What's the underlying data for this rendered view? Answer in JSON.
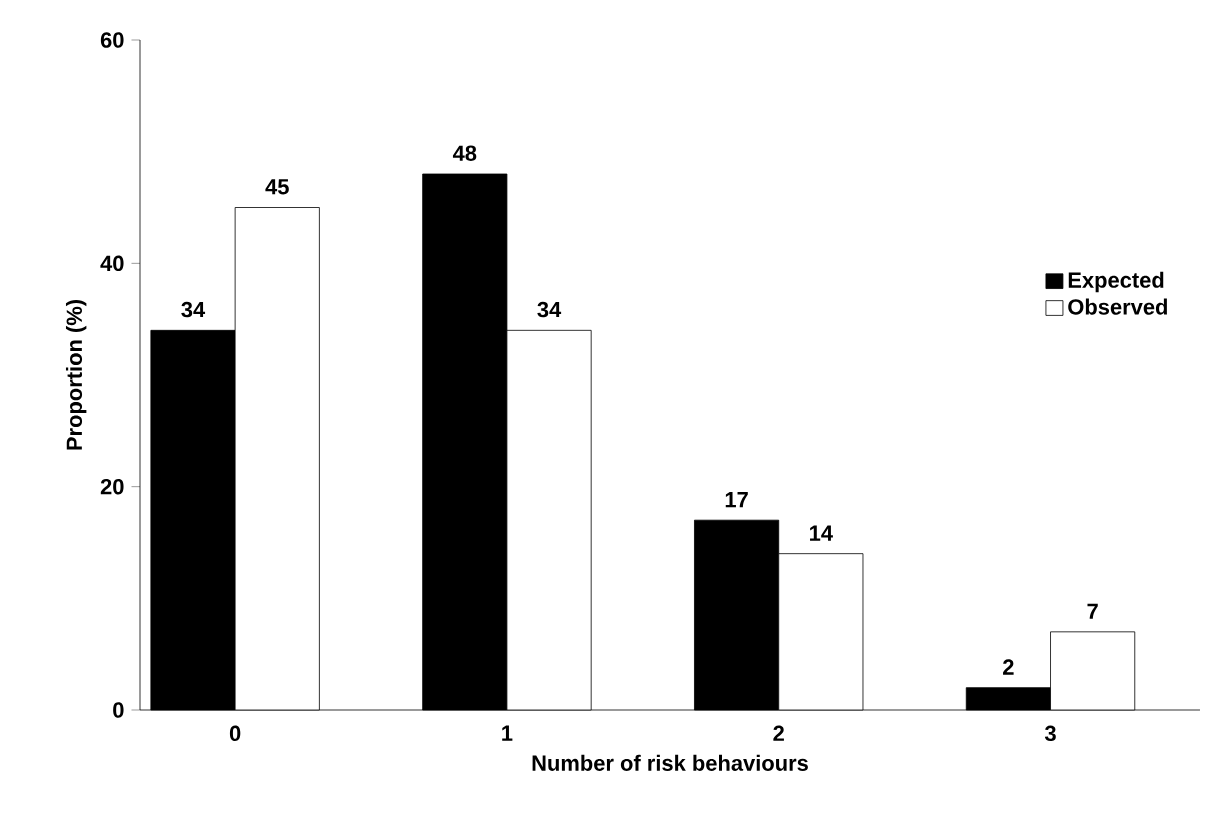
{
  "chart_data": {
    "type": "bar",
    "xlabel": "Number of risk behaviours",
    "ylabel": "Proportion (%)",
    "categories": [
      "0",
      "1",
      "2",
      "3"
    ],
    "series": [
      {
        "name": "Expected",
        "color": "#000000",
        "values": [
          34,
          48,
          17,
          2
        ]
      },
      {
        "name": "Observed",
        "color": "#ffffff",
        "values": [
          45,
          34,
          14,
          7
        ]
      }
    ],
    "ylim": [
      0,
      60
    ],
    "yticks": [
      0,
      20,
      40,
      60
    ],
    "data_labels": true,
    "legend": "right",
    "grid": false
  }
}
